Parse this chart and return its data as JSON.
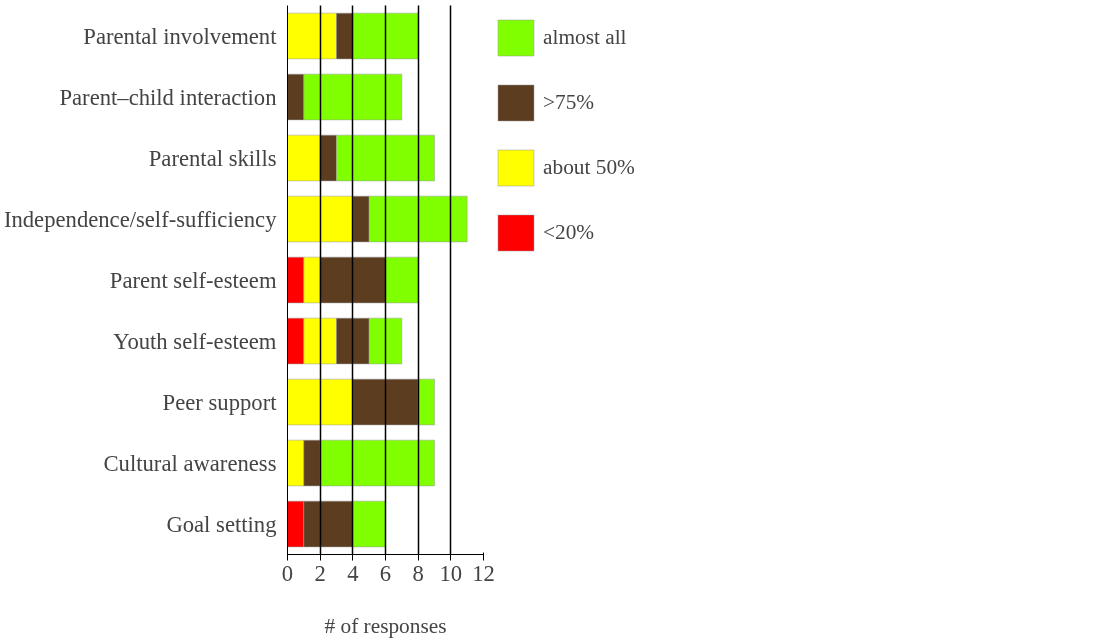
{
  "chart_data": {
    "type": "bar",
    "orientation": "horizontal",
    "stacked": true,
    "xlabel": "# of responses",
    "categories": [
      "Parental involvement",
      "Parent–child interaction",
      "Parental skills",
      "Independence/self-sufficiency",
      "Parent self-esteem",
      "Youth self-esteem",
      "Peer support",
      "Cultural awareness",
      "Goal setting"
    ],
    "series": [
      {
        "name": "<20%",
        "color": "#ff0000",
        "values": [
          0,
          0,
          0,
          0,
          1,
          1,
          0,
          0,
          1
        ]
      },
      {
        "name": "about 50%",
        "color": "#ffff00",
        "values": [
          3,
          0,
          2,
          4,
          1,
          2,
          4,
          1,
          0
        ]
      },
      {
        "name": ">75%",
        "color": "#5c3d1f",
        "values": [
          1,
          1,
          1,
          1,
          4,
          2,
          4,
          1,
          3
        ]
      },
      {
        "name": "almost all",
        "color": "#80ff00",
        "values": [
          4,
          6,
          6,
          6,
          2,
          2,
          1,
          7,
          2
        ]
      }
    ],
    "xlim": [
      0,
      12
    ],
    "xticks": [
      0,
      2,
      4,
      6,
      8,
      10,
      12
    ],
    "grid": "x",
    "legend": "right"
  }
}
